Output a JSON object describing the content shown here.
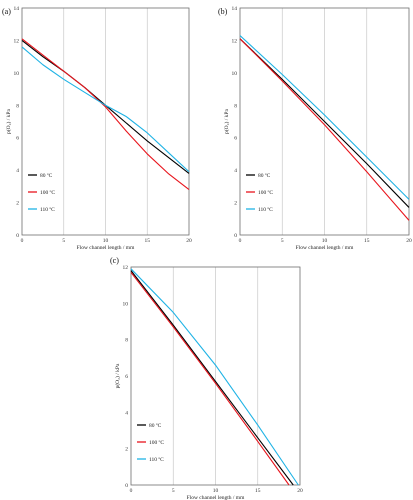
{
  "chart_data": [
    {
      "panel_label": "(a)",
      "type": "line",
      "xlabel": "Flow channel length / mm",
      "ylabel": "p(O₂) / kPa",
      "xlim": [
        0,
        20
      ],
      "ylim": [
        0,
        14
      ],
      "xticks": [
        "0",
        "5",
        "10",
        "15",
        "20"
      ],
      "yticks": [
        "0",
        "2",
        "4",
        "6",
        "8",
        "10",
        "12",
        "14"
      ],
      "grid": "vertical",
      "legend_position": "bottom-left",
      "series": [
        {
          "name": "80 ºC",
          "color": "#000000",
          "points": [
            [
              0,
              12.0
            ],
            [
              2.5,
              11.0
            ],
            [
              5,
              10.1
            ],
            [
              7.5,
              9.1
            ],
            [
              10,
              8.0
            ],
            [
              12.5,
              6.9
            ],
            [
              15,
              5.8
            ],
            [
              17.5,
              4.8
            ],
            [
              20,
              3.8
            ]
          ]
        },
        {
          "name": "100 ºC",
          "color": "#e8141c",
          "points": [
            [
              0,
              12.1
            ],
            [
              2.5,
              11.1
            ],
            [
              5,
              10.1
            ],
            [
              7.5,
              9.1
            ],
            [
              10,
              7.9
            ],
            [
              12.5,
              6.4
            ],
            [
              15,
              5.0
            ],
            [
              17.5,
              3.8
            ],
            [
              20,
              2.8
            ]
          ]
        },
        {
          "name": "110 ºC",
          "color": "#1fb3e5",
          "points": [
            [
              0,
              11.6
            ],
            [
              2.5,
              10.5
            ],
            [
              5,
              9.6
            ],
            [
              7.5,
              8.8
            ],
            [
              10,
              8.0
            ],
            [
              12.5,
              7.3
            ],
            [
              15,
              6.3
            ],
            [
              17.5,
              5.1
            ],
            [
              20,
              3.9
            ]
          ]
        }
      ]
    },
    {
      "panel_label": "(b)",
      "type": "line",
      "xlabel": "Flow channel length / mm",
      "ylabel": "p(O₂) / kPa",
      "xlim": [
        0,
        20
      ],
      "ylim": [
        0,
        14
      ],
      "xticks": [
        "0",
        "5",
        "10",
        "15",
        "20"
      ],
      "yticks": [
        "0",
        "2",
        "4",
        "6",
        "8",
        "10",
        "12",
        "14"
      ],
      "grid": "vertical",
      "legend_position": "bottom-left",
      "series": [
        {
          "name": "80 ºC",
          "color": "#000000",
          "points": [
            [
              0,
              12.1
            ],
            [
              5,
              9.6
            ],
            [
              10,
              7.0
            ],
            [
              15,
              4.4
            ],
            [
              20,
              1.7
            ]
          ]
        },
        {
          "name": "100 ºC",
          "color": "#e8141c",
          "points": [
            [
              0,
              12.1
            ],
            [
              5,
              9.5
            ],
            [
              10,
              6.8
            ],
            [
              15,
              3.9
            ],
            [
              20,
              0.9
            ]
          ]
        },
        {
          "name": "110 ºC",
          "color": "#1fb3e5",
          "points": [
            [
              0,
              12.3
            ],
            [
              5,
              9.9
            ],
            [
              10,
              7.4
            ],
            [
              15,
              4.8
            ],
            [
              20,
              2.2
            ]
          ]
        }
      ]
    },
    {
      "panel_label": "(c)",
      "type": "line",
      "xlabel": "Flow channel length / mm",
      "ylabel": "p(O₂) / kPa",
      "xlim": [
        0,
        20
      ],
      "ylim": [
        0,
        12
      ],
      "xticks": [
        "0",
        "5",
        "10",
        "15",
        "20"
      ],
      "yticks": [
        "0",
        "2",
        "4",
        "6",
        "8",
        "10",
        "12"
      ],
      "grid": "vertical",
      "legend_position": "bottom-left",
      "series": [
        {
          "name": "80 ºC",
          "color": "#000000",
          "points": [
            [
              0,
              11.8
            ],
            [
              5,
              8.8
            ],
            [
              10,
              5.7
            ],
            [
              15,
              2.6
            ],
            [
              19.2,
              0.0
            ]
          ]
        },
        {
          "name": "100 ºC",
          "color": "#e8141c",
          "points": [
            [
              0,
              11.7
            ],
            [
              5,
              8.7
            ],
            [
              10,
              5.6
            ],
            [
              15,
              2.4
            ],
            [
              18.7,
              0.0
            ]
          ]
        },
        {
          "name": "110 ºC",
          "color": "#1fb3e5",
          "points": [
            [
              0,
              11.9
            ],
            [
              5,
              9.5
            ],
            [
              10,
              6.6
            ],
            [
              15,
              3.3
            ],
            [
              19.8,
              0.0
            ]
          ]
        }
      ]
    }
  ]
}
